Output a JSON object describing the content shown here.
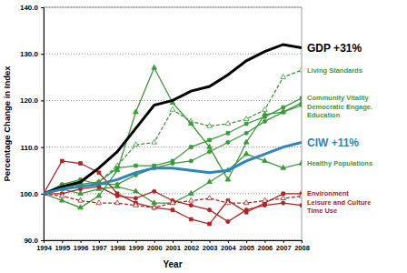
{
  "chart_data": {
    "type": "line",
    "x_label": "Year",
    "y_label": "Percentage Change in Index",
    "x": [
      1994,
      1995,
      1996,
      1997,
      1998,
      1999,
      2000,
      2001,
      2002,
      2003,
      2004,
      2005,
      2006,
      2007,
      2008
    ],
    "xlim": [
      1994,
      2008
    ],
    "xticks": [
      1994,
      1995,
      1996,
      1997,
      1998,
      1999,
      2000,
      2001,
      2002,
      2003,
      2004,
      2005,
      2006,
      2007,
      2008
    ],
    "ylim": [
      90,
      140
    ],
    "yticks": [
      {
        "value": 90,
        "label": "90.0"
      },
      {
        "value": 100,
        "label": "100.0"
      },
      {
        "value": 110,
        "label": "110.0"
      },
      {
        "value": 120,
        "label": "120.0"
      },
      {
        "value": 130,
        "label": "130.0"
      },
      {
        "value": 140,
        "label": "140.0"
      }
    ],
    "grid": true,
    "series": [
      {
        "name": "GDP +31%",
        "color": "#000000",
        "line_style": "solid",
        "marker": "none",
        "values": [
          100,
          101.5,
          102.5,
          105.5,
          109,
          114,
          119,
          120,
          122,
          123,
          125.5,
          128.5,
          130.5,
          132,
          131.3
        ]
      },
      {
        "name": "Living Standards",
        "color": "#3a9a3a",
        "line_style": "dashed",
        "marker": "triangle",
        "values": [
          100,
          101,
          102,
          102.5,
          106,
          110.5,
          111,
          118,
          115.5,
          114.5,
          115,
          116,
          118,
          125,
          126.5
        ]
      },
      {
        "name": "Community Vitality",
        "color": "#3a9a3a",
        "line_style": "solid",
        "marker": "square",
        "values": [
          100,
          101.5,
          102,
          102.5,
          105.5,
          106,
          106,
          107,
          110,
          111.5,
          113,
          115,
          116.5,
          118.5,
          120.5
        ]
      },
      {
        "name": "Democratic Engage.",
        "color": "#3a9a3a",
        "line_style": "solid",
        "marker": "triangle",
        "values": [
          100,
          98.5,
          97,
          99.5,
          105,
          117.5,
          127,
          119.5,
          115,
          110,
          103,
          111,
          117,
          117.5,
          119.5
        ]
      },
      {
        "name": "Education",
        "color": "#3a9a3a",
        "line_style": "solid",
        "marker": "circle",
        "values": [
          100,
          102,
          103,
          102,
          102,
          104,
          105.5,
          106.5,
          107,
          109,
          111,
          113,
          115.5,
          117.5,
          119
        ]
      },
      {
        "name": "CIW +11%",
        "color": "#2e86b8",
        "line_style": "solid",
        "marker": "none",
        "values": [
          100,
          101,
          101.5,
          102,
          103,
          104.5,
          105.5,
          105.5,
          105,
          104.5,
          105,
          107,
          108.5,
          110,
          111
        ]
      },
      {
        "name": "Healthy Populations",
        "color": "#3a9a3a",
        "line_style": "solid",
        "marker": "triangle",
        "values": [
          100,
          101,
          100,
          101,
          101.5,
          100.5,
          98,
          98,
          100,
          102.5,
          105,
          108.5,
          107,
          105.5,
          106.5
        ]
      },
      {
        "name": "Environment",
        "color": "#b22222",
        "line_style": "solid",
        "marker": "square",
        "values": [
          100,
          107,
          106.5,
          104.5,
          100,
          98,
          97,
          96.5,
          94.5,
          93.5,
          98.5,
          96,
          98,
          100,
          100
        ]
      },
      {
        "name": "Time Use",
        "color": "#b22222",
        "line_style": "solid",
        "marker": "circle",
        "values": [
          100,
          100,
          101,
          101.5,
          99.5,
          99,
          100.5,
          98.5,
          97.5,
          96.5,
          94,
          96.5,
          97.5,
          98,
          97.5
        ]
      },
      {
        "name": "Leisure and Culture",
        "color": "#b22222",
        "line_style": "dashed",
        "marker": "triangle",
        "values": [
          100,
          99.5,
          98.5,
          98,
          98,
          97.5,
          97,
          98,
          98.5,
          99,
          98,
          98,
          98.5,
          99,
          99.5
        ]
      }
    ]
  }
}
